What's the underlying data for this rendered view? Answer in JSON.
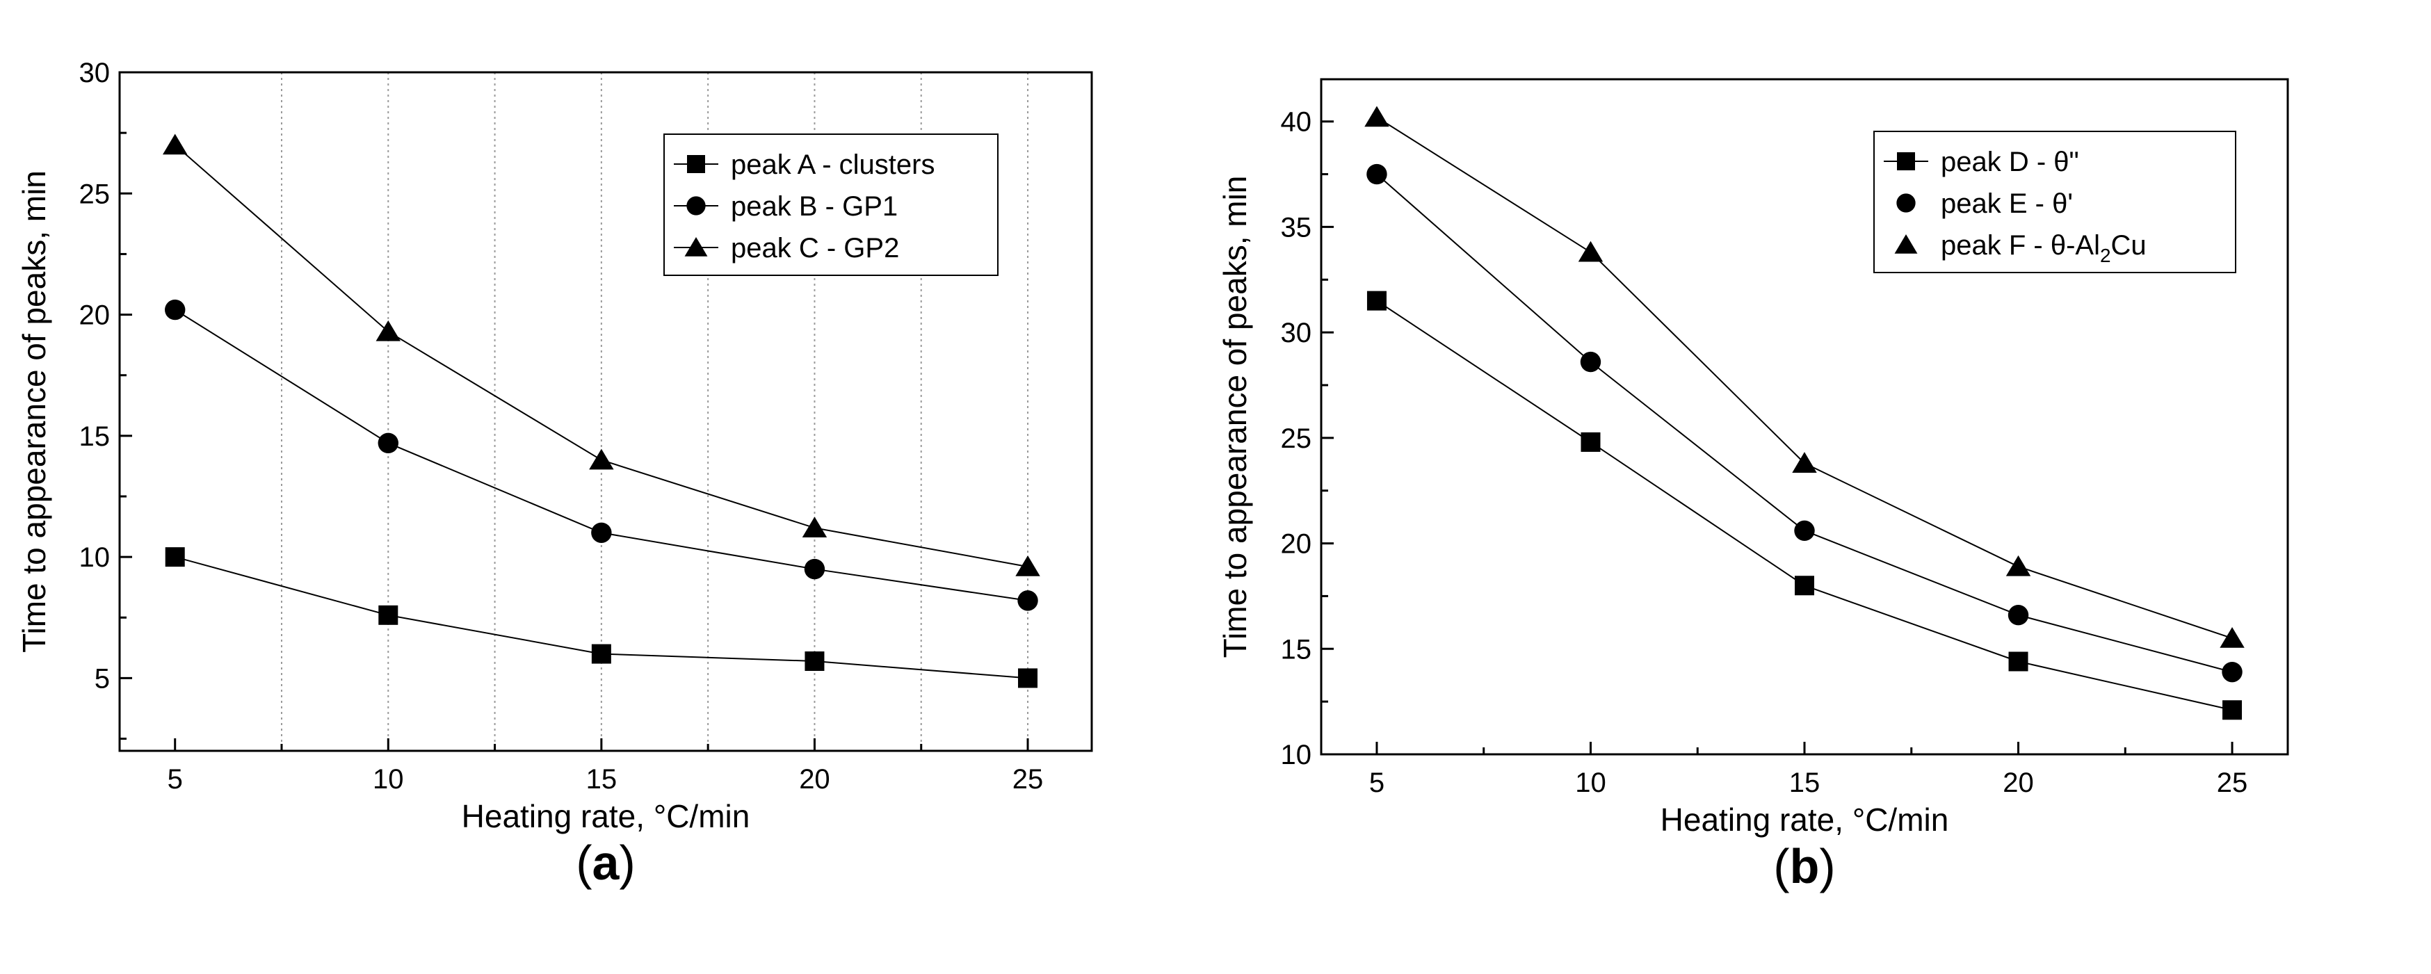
{
  "chart_data": [
    {
      "type": "line",
      "panel_label": "(a)",
      "panel_letter": "a",
      "xlabel": "Heating rate, °C/min",
      "ylabel": "Time to appearance of peaks, min",
      "xlim": [
        3.7,
        26.5
      ],
      "ylim": [
        2,
        30
      ],
      "x_ticks": [
        5,
        10,
        15,
        20,
        25
      ],
      "y_ticks": [
        5,
        10,
        15,
        20,
        25,
        30
      ],
      "grid": "vertical dotted",
      "legend_position": "top-right",
      "x": [
        5,
        10,
        15,
        20,
        25
      ],
      "series": [
        {
          "name": "peak A - clusters",
          "marker": "square",
          "values": [
            10.0,
            7.6,
            6.0,
            5.7,
            5.0
          ]
        },
        {
          "name": "peak B - GP1",
          "marker": "circle",
          "values": [
            20.2,
            14.7,
            11.0,
            9.5,
            8.2
          ]
        },
        {
          "name": "peak C - GP2",
          "marker": "triangle",
          "values": [
            27.0,
            19.3,
            14.0,
            11.2,
            9.6
          ]
        }
      ]
    },
    {
      "type": "line",
      "panel_label": "(b)",
      "panel_letter": "b",
      "xlabel": "Heating rate, °C/min",
      "ylabel": "Time to appearance of peaks, min",
      "xlim": [
        3.7,
        26.3
      ],
      "ylim": [
        10,
        42
      ],
      "x_ticks": [
        5,
        10,
        15,
        20,
        25
      ],
      "y_ticks": [
        10,
        15,
        20,
        25,
        30,
        35,
        40
      ],
      "grid": "none",
      "legend_position": "top-right",
      "x": [
        5,
        10,
        15,
        20,
        25
      ],
      "series": [
        {
          "name": "peak D - θ\"",
          "marker": "square",
          "values": [
            31.5,
            24.8,
            18.0,
            14.4,
            12.1
          ]
        },
        {
          "name": "peak E - θ'",
          "marker": "circle",
          "values": [
            37.5,
            28.6,
            20.6,
            16.6,
            13.9
          ]
        },
        {
          "name": "peak F - θ-Al2Cu",
          "marker": "triangle",
          "values": [
            40.2,
            33.8,
            23.8,
            18.9,
            15.5
          ]
        }
      ]
    }
  ]
}
